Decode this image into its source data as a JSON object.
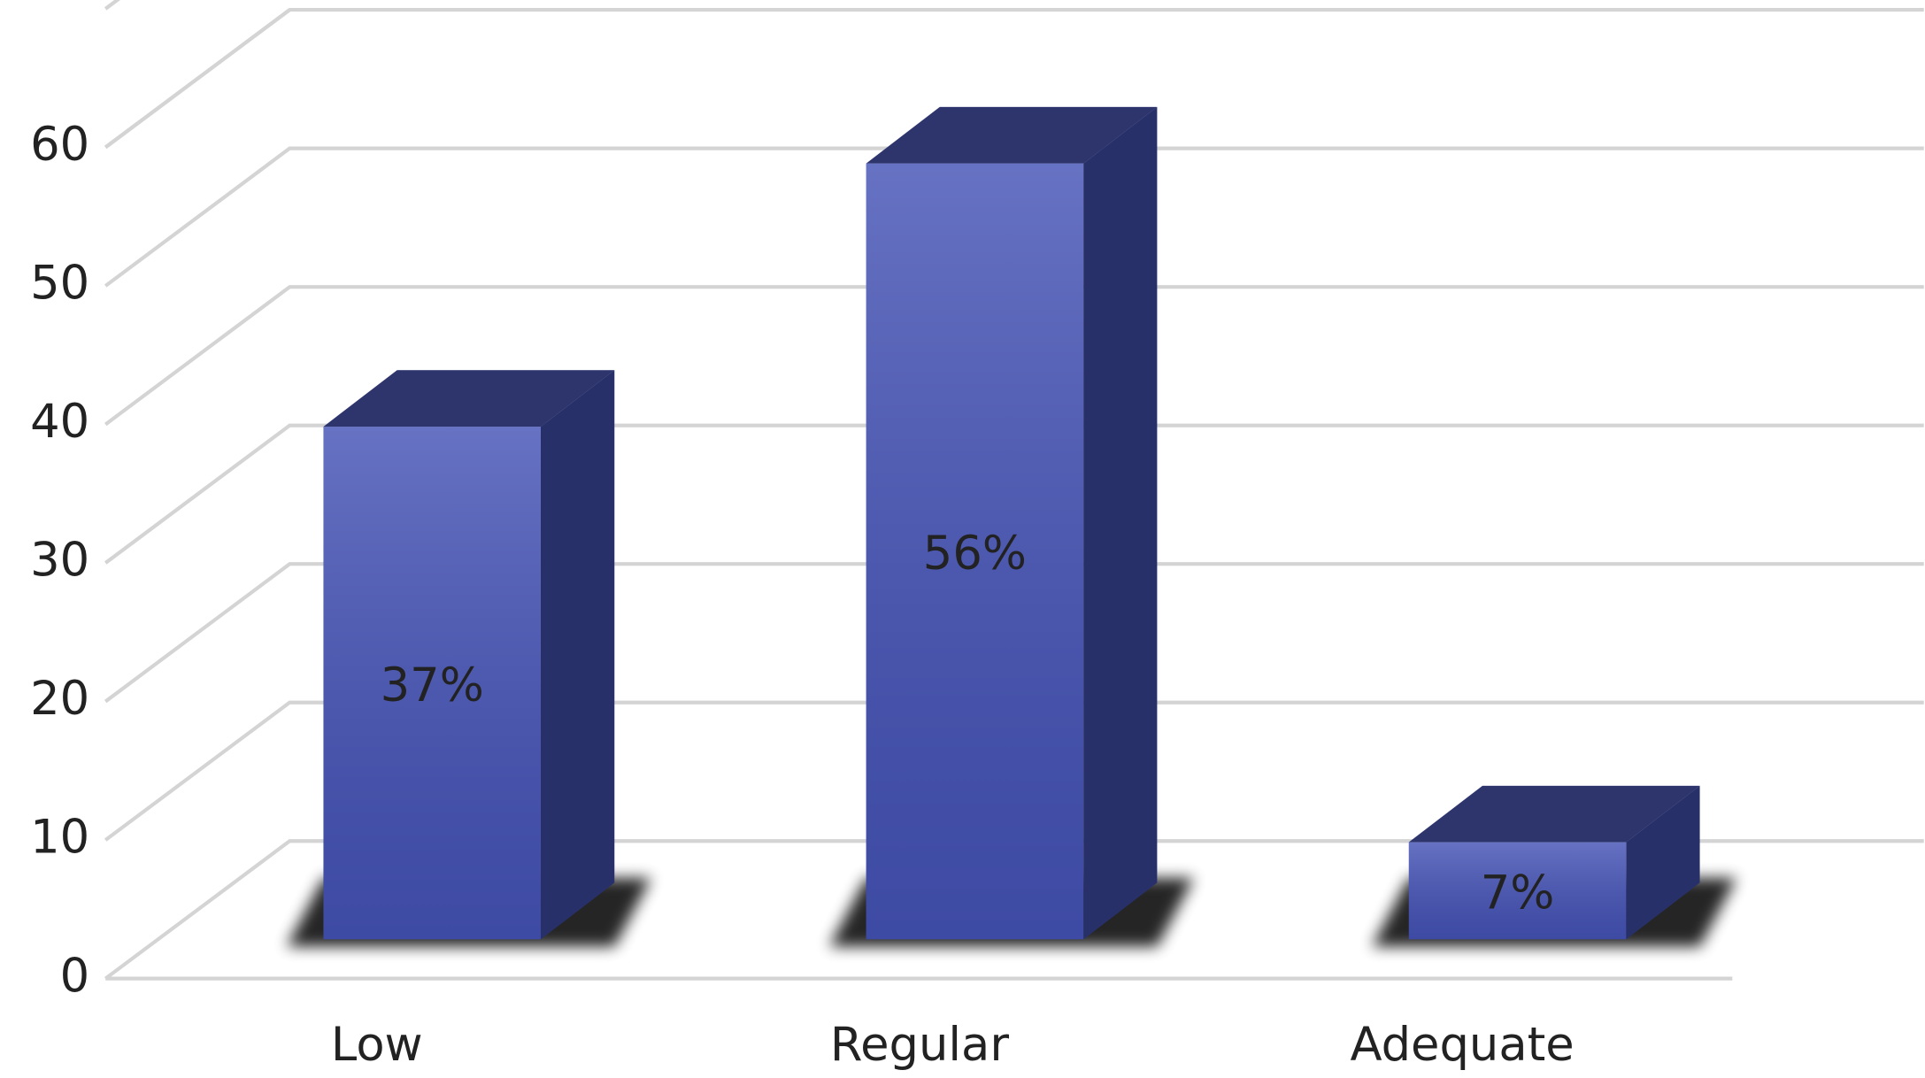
{
  "chart_data": {
    "type": "bar3d",
    "categories": [
      "Low",
      "Regular",
      "Adequate"
    ],
    "values": [
      37,
      56,
      7
    ],
    "value_labels": [
      "37%",
      "56%",
      "7%"
    ],
    "color": "#4553b6",
    "ylim": [
      0,
      60
    ],
    "yticks": [
      0,
      10,
      20,
      30,
      40,
      50,
      60
    ],
    "grid": true
  }
}
